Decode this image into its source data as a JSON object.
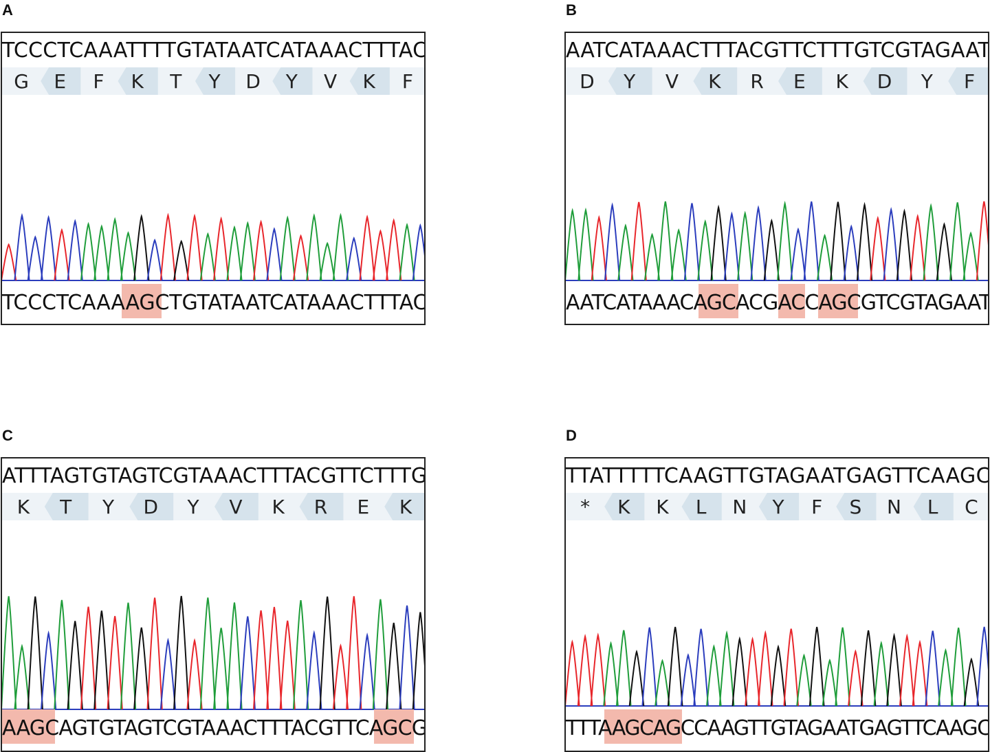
{
  "panels": [
    {
      "id": "A",
      "letter": "A",
      "ref_seq": "TCCCTCAAATTTTGTATAATCATAAACTTTAC",
      "amino_acids": [
        "G",
        "E",
        "F",
        "K",
        "T",
        "Y",
        "D",
        "Y",
        "V",
        "K",
        "F"
      ],
      "called_seq": "TCCCTCAAAAGCTGTATAATCATAAACTTTAC",
      "highlights": [
        {
          "start": 9,
          "len": 3
        }
      ],
      "base_colors": {
        "A": "#1f9d3a",
        "T": "#e8262b",
        "C": "#2b3dbd",
        "G": "#111111"
      }
    },
    {
      "id": "B",
      "letter": "B",
      "ref_seq": "AATCATAAACTTTACGTTCTTTGTCGTAGAAT",
      "amino_acids": [
        "D",
        "Y",
        "V",
        "K",
        "R",
        "E",
        "K",
        "D",
        "Y",
        "F"
      ],
      "called_seq": "AATCATAAACAGCACGACCAGCGTCGTAGAAT",
      "highlights": [
        {
          "start": 10,
          "len": 3
        },
        {
          "start": 16,
          "len": 2
        },
        {
          "start": 19,
          "len": 3
        }
      ],
      "base_colors": {
        "A": "#1f9d3a",
        "T": "#e8262b",
        "C": "#2b3dbd",
        "G": "#111111"
      }
    },
    {
      "id": "C",
      "letter": "C",
      "ref_seq": "ATTTAGTGTAGTCGTAAACTTTACGTTCTTTG",
      "amino_acids": [
        "K",
        "T",
        "Y",
        "D",
        "Y",
        "V",
        "K",
        "R",
        "E",
        "K"
      ],
      "called_seq": "AAGCAGTGTAGTCGTAAACTTTACGTTCAGCG",
      "highlights": [
        {
          "start": 0,
          "len": 4
        },
        {
          "start": 28,
          "len": 3
        }
      ],
      "base_colors": {
        "A": "#1f9d3a",
        "T": "#e8262b",
        "C": "#2b3dbd",
        "G": "#111111"
      }
    },
    {
      "id": "D",
      "letter": "D",
      "ref_seq": "TTATTTTTCAAGTTGTAGAATGAGTTCAAGC",
      "amino_acids": [
        "*",
        "K",
        "K",
        "L",
        "N",
        "Y",
        "F",
        "S",
        "N",
        "L",
        "C"
      ],
      "called_seq": "TTTAAGCAGCCAAGTTGTAGAATGAGTTCAAGC",
      "highlights": [
        {
          "start": 3,
          "len": 6
        }
      ],
      "base_colors": {
        "A": "#1f9d3a",
        "T": "#e8262b",
        "C": "#2b3dbd",
        "G": "#111111"
      }
    }
  ]
}
